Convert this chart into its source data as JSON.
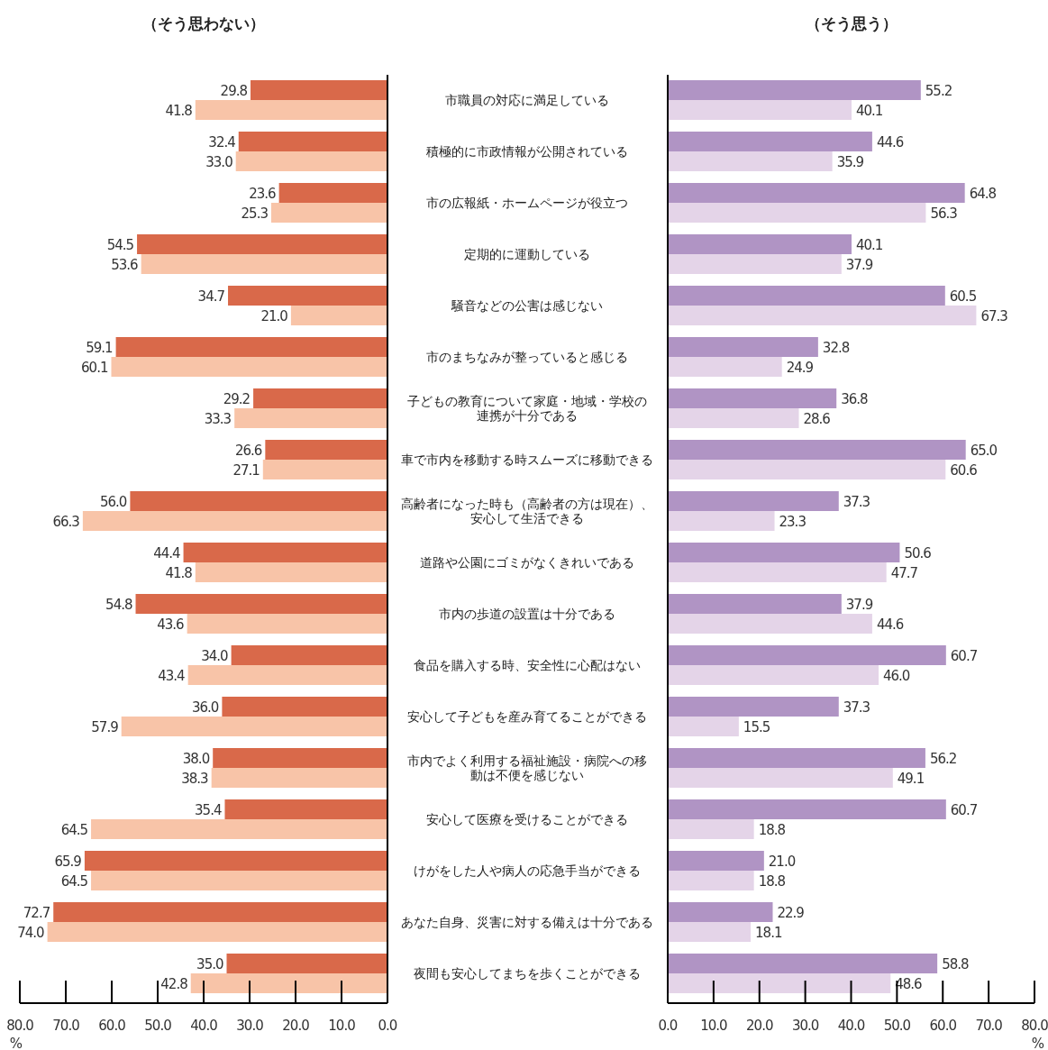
{
  "chart_data": [
    {
      "type": "bar",
      "orientation": "horizontal",
      "title": "（そう思わない）",
      "xlabel": "%",
      "categories": [
        "市職員の対応に満足している",
        "積極的に市政情報が公開されている",
        "市の広報紙・ホームページが役立つ",
        "定期的に運動している",
        "騒音などの公害は感じない",
        "市のまちなみが整っていると感じる",
        "子どもの教育について家庭・地域・学校の連携が十分である",
        "車で市内を移動する時スムーズに移動できる",
        "高齢者になった時も（高齢者の方は現在）、安心して生活できる",
        "道路や公園にゴミがなくきれいである",
        "市内の歩道の設置は十分である",
        "食品を購入する時、安全性に心配はない",
        "安心して子どもを産み育てることができる",
        "市内でよく利用する福祉施設・病院への移動は不便を感じない",
        "安心して医療を受けることができる",
        "けがをした人や病人の応急手当ができる",
        "あなた自身、災害に対する備えは十分である",
        "夜間も安心してまちを歩くことができる"
      ],
      "xlim": [
        80,
        0
      ],
      "xticks": [
        {
          "value": 80,
          "label": "80.0"
        },
        {
          "value": 70,
          "label": "70.0"
        },
        {
          "value": 60,
          "label": "60.0"
        },
        {
          "value": 50,
          "label": "50.0"
        },
        {
          "value": 40,
          "label": "40.0"
        },
        {
          "value": 30,
          "label": "30.0"
        },
        {
          "value": 20,
          "label": "20.0"
        },
        {
          "value": 10,
          "label": "10.0"
        },
        {
          "value": 0,
          "label": "0.0"
        }
      ],
      "series": [
        {
          "color": "#d9694a",
          "values": [
            29.8,
            32.4,
            23.6,
            54.5,
            34.7,
            59.1,
            29.2,
            26.6,
            56.0,
            44.4,
            54.8,
            34.0,
            36.0,
            38.0,
            35.4,
            65.9,
            72.7,
            35.0
          ],
          "value_labels": [
            "29.8",
            "32.4",
            "23.6",
            "54.5",
            "34.7",
            "59.1",
            "29.2",
            "26.6",
            "56.0",
            "44.4",
            "54.8",
            "34.0",
            "36.0",
            "38.0",
            "35.4",
            "65.9",
            "72.7",
            "35.0"
          ]
        },
        {
          "color": "#f8c4a8",
          "values": [
            41.8,
            33.0,
            25.3,
            53.6,
            21.0,
            60.1,
            33.3,
            27.1,
            66.3,
            41.8,
            43.6,
            43.4,
            57.9,
            38.3,
            64.5,
            64.5,
            74.0,
            42.8
          ],
          "value_labels": [
            "41.8",
            "33.0",
            "25.3",
            "53.6",
            "21.0",
            "60.1",
            "33.3",
            "27.1",
            "66.3",
            "41.8",
            "43.6",
            "43.4",
            "57.9",
            "38.3",
            "64.5",
            "64.5",
            "74.0",
            "42.8"
          ]
        }
      ]
    },
    {
      "type": "bar",
      "orientation": "horizontal",
      "title": "（そう思う）",
      "xlabel": "%",
      "tick_labels": "x",
      "categories": [
        "市職員の対応に満足している",
        "積極的に市政情報が公開されている",
        "市の広報紙・ホームページが役立つ",
        "定期的に運動している",
        "騒音などの公害は感じない",
        "市のまちなみが整っていると感じる",
        "子どもの教育について家庭・地域・学校の連携が十分である",
        "車で市内を移動する時スムーズに移動できる",
        "高齢者になった時も（高齢者の方は現在）、安心して生活できる",
        "道路や公園にゴミがなくきれいである",
        "市内の歩道の設置は十分である",
        "食品を購入する時、安全性に心配はない",
        "安心して子どもを産み育てることができる",
        "市内でよく利用する福祉施設・病院への移動は不便を感じない",
        "安心して医療を受けることができる",
        "けがをした人や病人の応急手当ができる",
        "あなた自身、災害に対する備えは十分である",
        "夜間も安心してまちを歩くことができる"
      ],
      "xlim": [
        0,
        80
      ],
      "xticks": [
        {
          "value": 0,
          "label": "0.0"
        },
        {
          "value": 10,
          "label": "10.0"
        },
        {
          "value": 20,
          "label": "20.0"
        },
        {
          "value": 30,
          "label": "30.0"
        },
        {
          "value": 40,
          "label": "40.0"
        },
        {
          "value": 50,
          "label": "50.0"
        },
        {
          "value": 60,
          "label": "60.0"
        },
        {
          "value": 70,
          "label": "70.0"
        },
        {
          "value": 80,
          "label": "80.0"
        }
      ],
      "series": [
        {
          "color": "#b094c4",
          "values": [
            55.2,
            44.6,
            64.8,
            40.1,
            60.5,
            32.8,
            36.8,
            65.0,
            37.3,
            50.6,
            37.9,
            60.7,
            37.3,
            56.2,
            60.7,
            21.0,
            22.9,
            58.8
          ],
          "value_labels": [
            "55.2",
            "44.6",
            "64.8",
            "40.1",
            "60.5",
            "32.8",
            "36.8",
            "65.0",
            "37.3",
            "50.6",
            "37.9",
            "60.7",
            "37.3",
            "56.2",
            "60.7",
            "21.0",
            "22.9",
            "58.8"
          ]
        },
        {
          "color": "#e4d4e8",
          "values": [
            40.1,
            35.9,
            56.3,
            37.9,
            67.3,
            24.9,
            28.6,
            60.6,
            23.3,
            47.7,
            44.6,
            46.0,
            15.5,
            49.1,
            18.8,
            18.8,
            18.1,
            48.6
          ],
          "value_labels": [
            "40.1",
            "35.9",
            "56.3",
            "37.9",
            "67.3",
            "24.9",
            "28.6",
            "60.6",
            "23.3",
            "47.7",
            "44.6",
            "46.0",
            "15.5",
            "49.1",
            "18.8",
            "18.8",
            "18.1",
            "48.6"
          ]
        }
      ]
    }
  ]
}
